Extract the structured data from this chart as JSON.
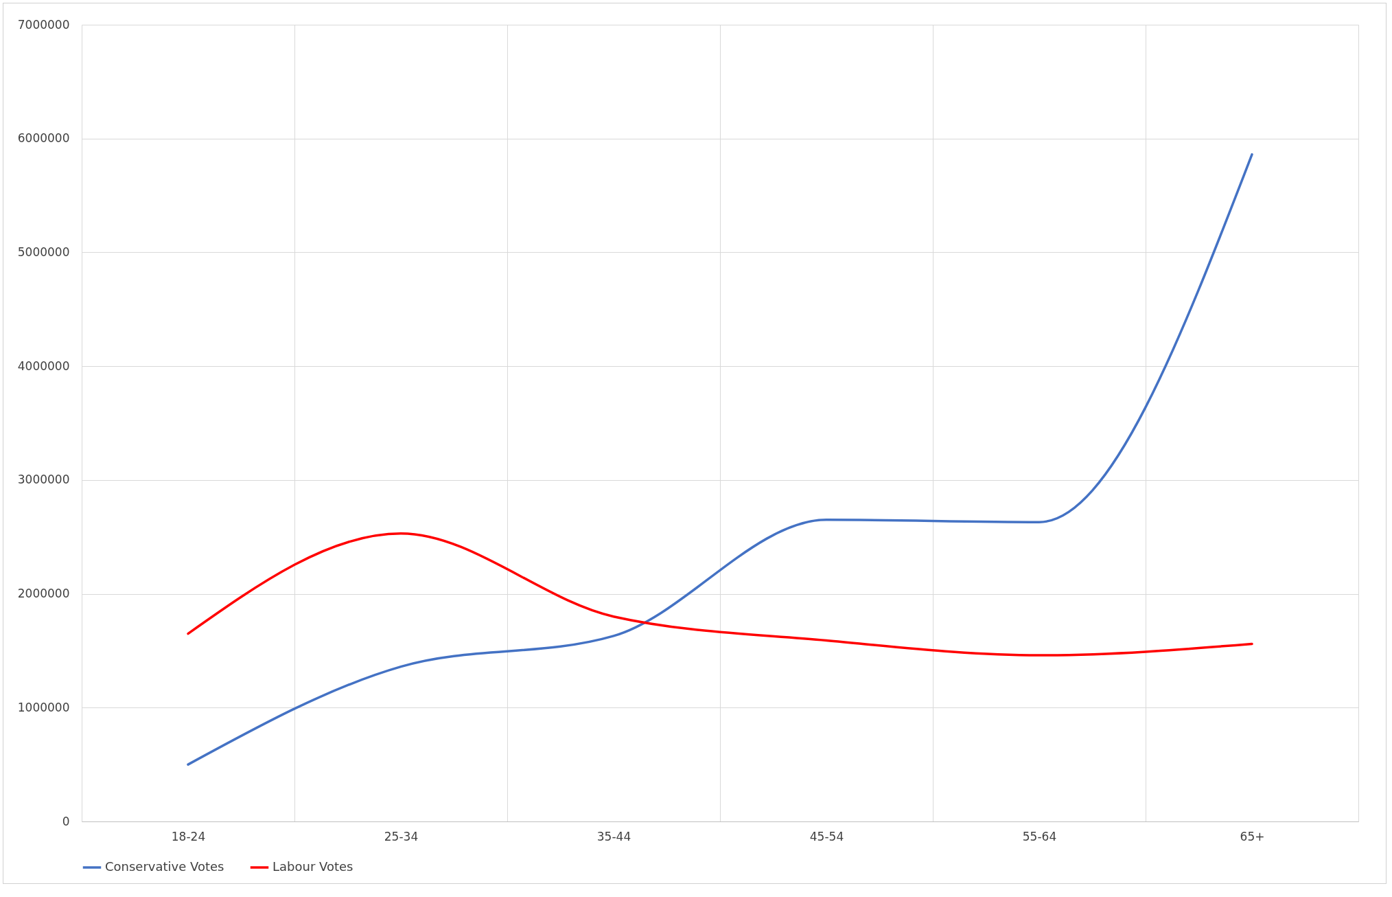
{
  "chart_data": {
    "type": "line",
    "categories": [
      "18-24",
      "25-34",
      "35-44",
      "45-54",
      "55-64",
      "65+"
    ],
    "series": [
      {
        "name": "Conservative Votes",
        "color": "#4472c4",
        "values": [
          500000,
          1360000,
          1630000,
          2650000,
          2630000,
          5860000
        ]
      },
      {
        "name": "Labour Votes",
        "color": "#ff0000",
        "values": [
          1650000,
          2530000,
          1800000,
          1590000,
          1460000,
          1560000
        ]
      }
    ],
    "ylim": [
      0,
      7000000
    ],
    "yticks": [
      0,
      1000000,
      2000000,
      3000000,
      4000000,
      5000000,
      6000000,
      7000000
    ],
    "grid": true,
    "legend": "bottom",
    "marker": "none",
    "line_style": "solid"
  }
}
